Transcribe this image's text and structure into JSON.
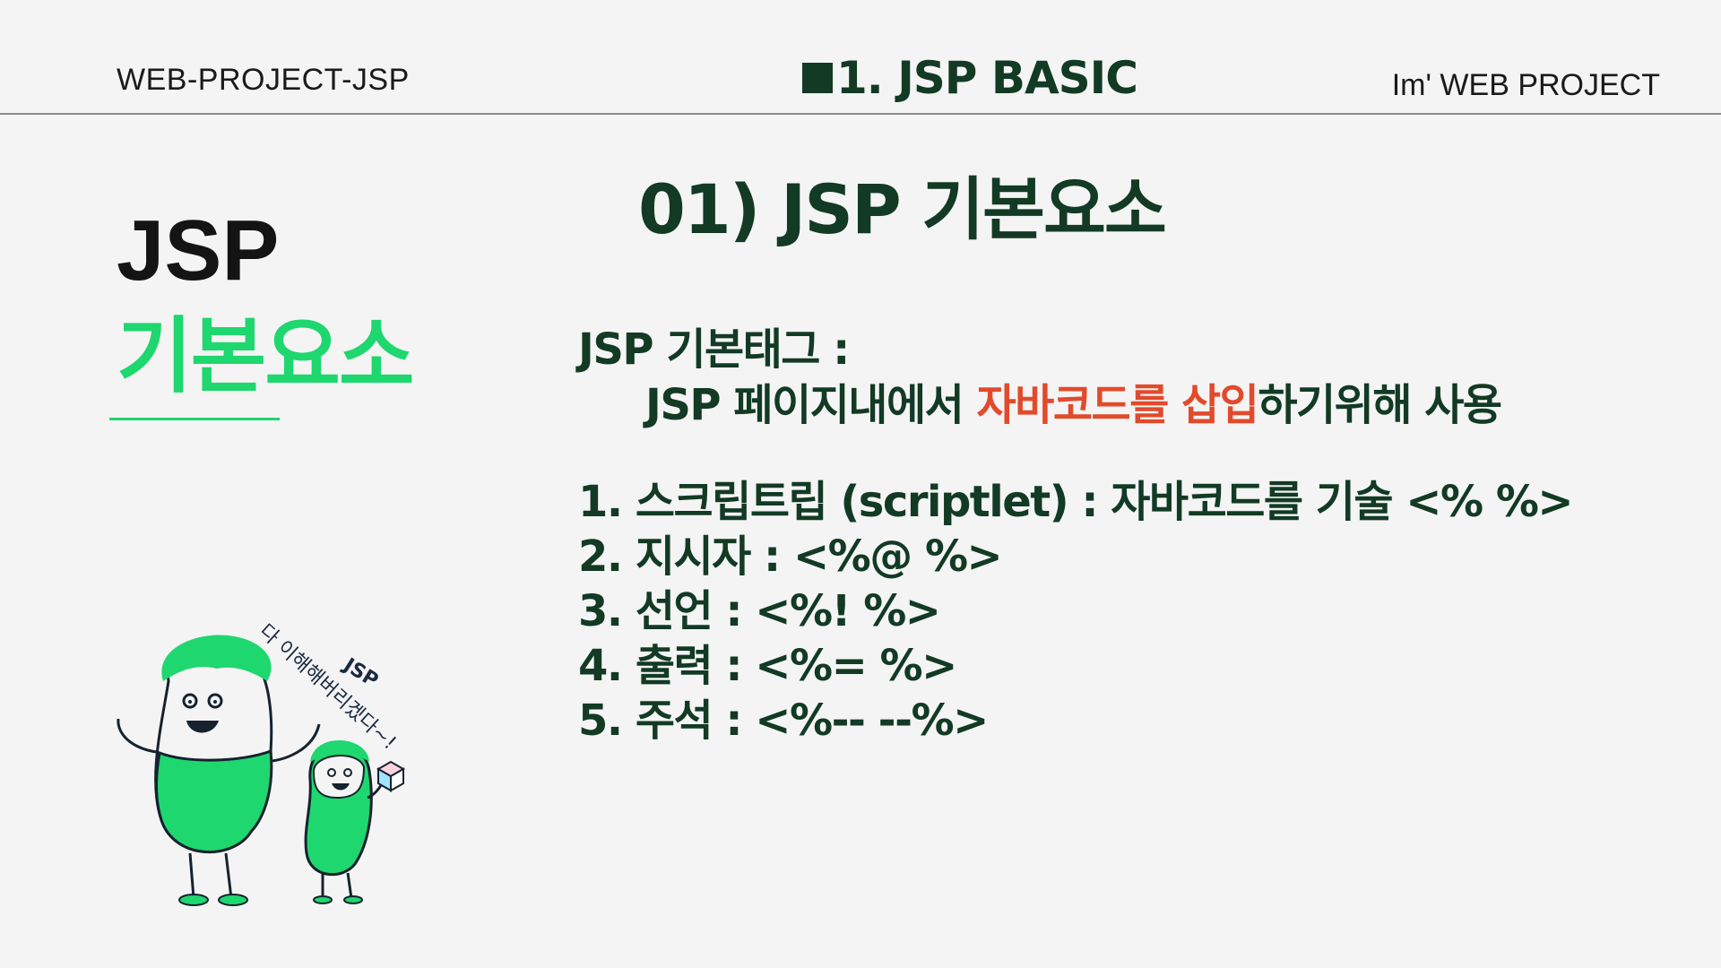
{
  "header": {
    "left": "WEB-PROJECT-JSP",
    "center": "1. JSP BASIC",
    "right": "Im'  WEB PROJECT"
  },
  "left_panel": {
    "title": "JSP",
    "subtitle": "기본요소"
  },
  "section_title": "01) JSP 기본요소",
  "tag": {
    "label": "JSP 기본태그 :",
    "desc_prefix": "JSP 페이지내에서 ",
    "desc_highlight1": "자바코드를 삽입",
    "desc_suffix": "하기위해 사용"
  },
  "items": [
    "1. 스크립트립 (scriptlet) : 자바코드를 기술 <% %>",
    "2. 지시자 : <%@ %>",
    "3. 선언 : <%!    %>",
    "4. 출력 : <%= %>",
    "5. 주석 : <%-- --%>"
  ],
  "mascot": {
    "speech_line1": "JSP",
    "speech_line2": "다 이해해버리겠다~!"
  },
  "colors": {
    "accent_green": "#1ed76e",
    "dark_green": "#123a24",
    "highlight": "#e24a2c",
    "background": "#f4f4f4"
  }
}
